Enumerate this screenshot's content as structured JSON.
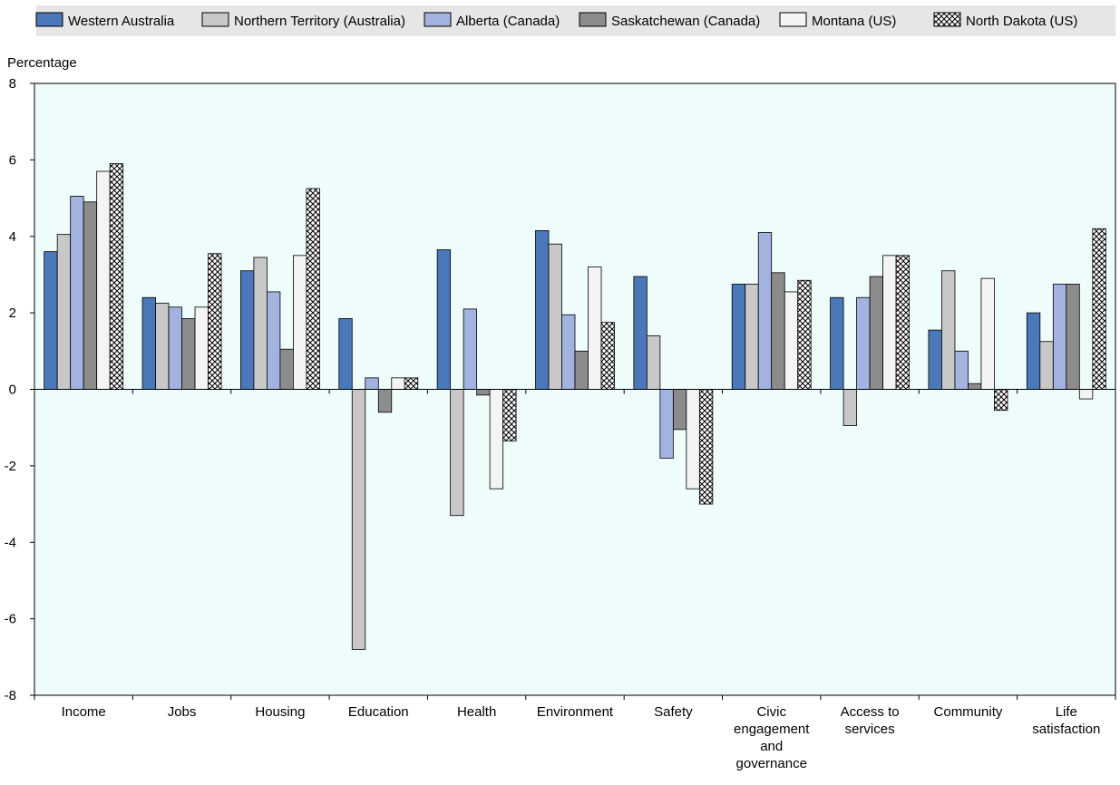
{
  "chart_data": {
    "type": "bar",
    "title": "",
    "xlabel": "",
    "ylabel": "Percentage",
    "ylim": [
      -8,
      8
    ],
    "yticks": [
      8,
      6,
      4,
      2,
      0,
      -2,
      -4,
      -6,
      -8
    ],
    "grid": false,
    "legend_position": "top",
    "categories": [
      [
        "Income"
      ],
      [
        "Jobs"
      ],
      [
        "Housing"
      ],
      [
        "Education"
      ],
      [
        "Health"
      ],
      [
        "Environment"
      ],
      [
        "Safety"
      ],
      [
        "Civic",
        "engagement",
        "and",
        "governance"
      ],
      [
        "Access to",
        "services"
      ],
      [
        "Community"
      ],
      [
        "Life",
        "satisfaction"
      ]
    ],
    "series": [
      {
        "name": "Western Australia",
        "color": "#4a78b8",
        "pattern": "solid",
        "values": [
          3.6,
          2.4,
          3.1,
          1.85,
          3.65,
          4.15,
          2.95,
          2.75,
          2.4,
          1.55,
          2.0
        ]
      },
      {
        "name": "Northern Territory (Australia)",
        "color": "#c8c8c8",
        "pattern": "solid",
        "values": [
          4.05,
          2.25,
          3.45,
          -6.8,
          -3.3,
          3.8,
          1.4,
          2.75,
          -0.95,
          3.1,
          1.25
        ]
      },
      {
        "name": "Alberta (Canada)",
        "color": "#a3b3e0",
        "pattern": "solid",
        "values": [
          5.05,
          2.15,
          2.55,
          0.3,
          2.1,
          1.95,
          -1.8,
          4.1,
          2.4,
          1.0,
          2.75
        ]
      },
      {
        "name": "Saskatchewan (Canada)",
        "color": "#8c8c8c",
        "pattern": "solid",
        "values": [
          4.9,
          1.85,
          1.05,
          -0.6,
          -0.15,
          1.0,
          -1.05,
          3.05,
          2.95,
          0.15,
          2.75
        ]
      },
      {
        "name": "Montana (US)",
        "color": "#f4f4f4",
        "pattern": "solid",
        "values": [
          5.7,
          2.15,
          3.5,
          0.3,
          -2.6,
          3.2,
          -2.6,
          2.55,
          3.5,
          2.9,
          -0.25
        ]
      },
      {
        "name": "North Dakota (US)",
        "color": "#ffffff",
        "pattern": "crosshatch",
        "values": [
          5.9,
          3.55,
          5.25,
          0.3,
          -1.35,
          1.75,
          -3.0,
          2.85,
          3.5,
          -0.55,
          4.2
        ]
      }
    ],
    "plot_background": "#eefcfc",
    "legend_background": "#e6e6e6"
  }
}
